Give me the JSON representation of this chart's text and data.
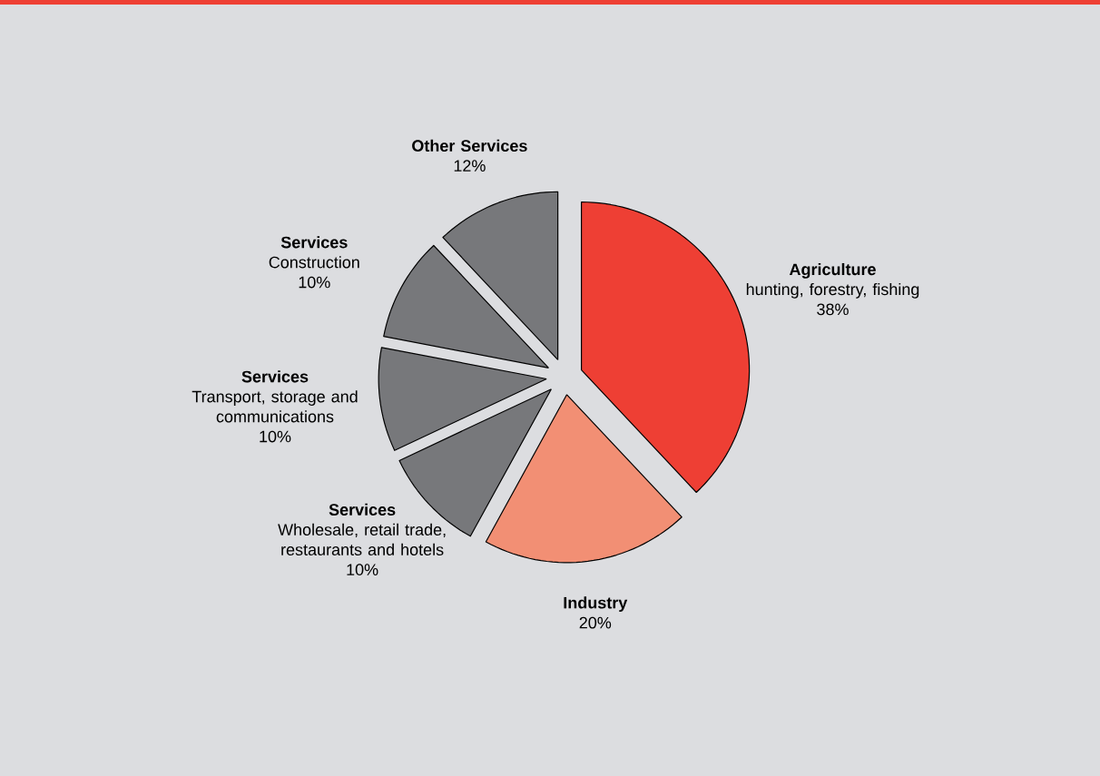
{
  "chart_data": {
    "type": "pie",
    "categories": [
      "**Agriculture**\nhunting, forestry, fishing",
      "**Industry**",
      "**Services**\nWholesale, retail trade,\nrestaurants and hotels",
      "**Services**\nTransport, storage and\ncommunications",
      "**Services**\nConstruction",
      "**Other Services**"
    ],
    "values": [
      38,
      20,
      10,
      10,
      10,
      12
    ],
    "value_labels": [
      "38%",
      "20%",
      "10%",
      "10%",
      "10%",
      "12%"
    ],
    "colors": [
      "#ee3f34",
      "#f28f74",
      "#77787b",
      "#77787b",
      "#77787b",
      "#77787b"
    ]
  }
}
